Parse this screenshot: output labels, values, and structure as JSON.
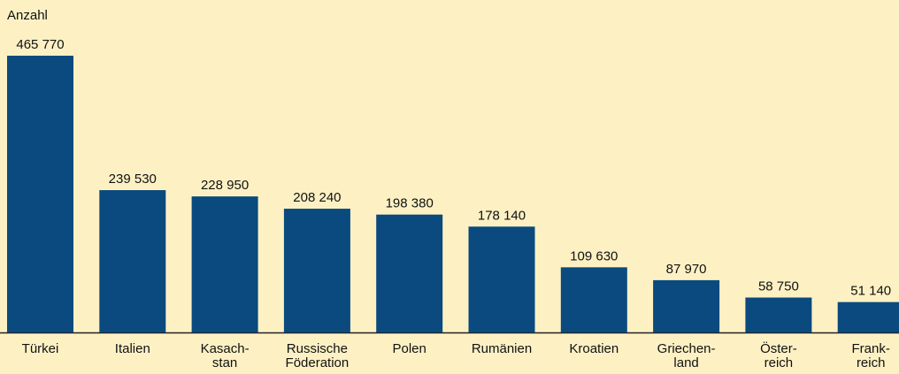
{
  "chart_data": {
    "type": "bar",
    "y_label": "Anzahl",
    "categories": [
      "Türkei",
      "Italien",
      "Kasach-\nstan",
      "Russische\nFöderation",
      "Polen",
      "Rumänien",
      "Kroatien",
      "Griechen-\nland",
      "Öster-\nreich",
      "Frank-\nreich"
    ],
    "values": [
      465770,
      239530,
      228950,
      208240,
      198380,
      178140,
      109630,
      87970,
      58750,
      51140
    ],
    "value_labels": [
      "465 770",
      "239 530",
      "228 950",
      "208 240",
      "198 380",
      "178 140",
      "109 630",
      "87 970",
      "58 750",
      "51 140"
    ],
    "color": "#0a4a7e",
    "ylim": [
      0,
      500000
    ]
  }
}
